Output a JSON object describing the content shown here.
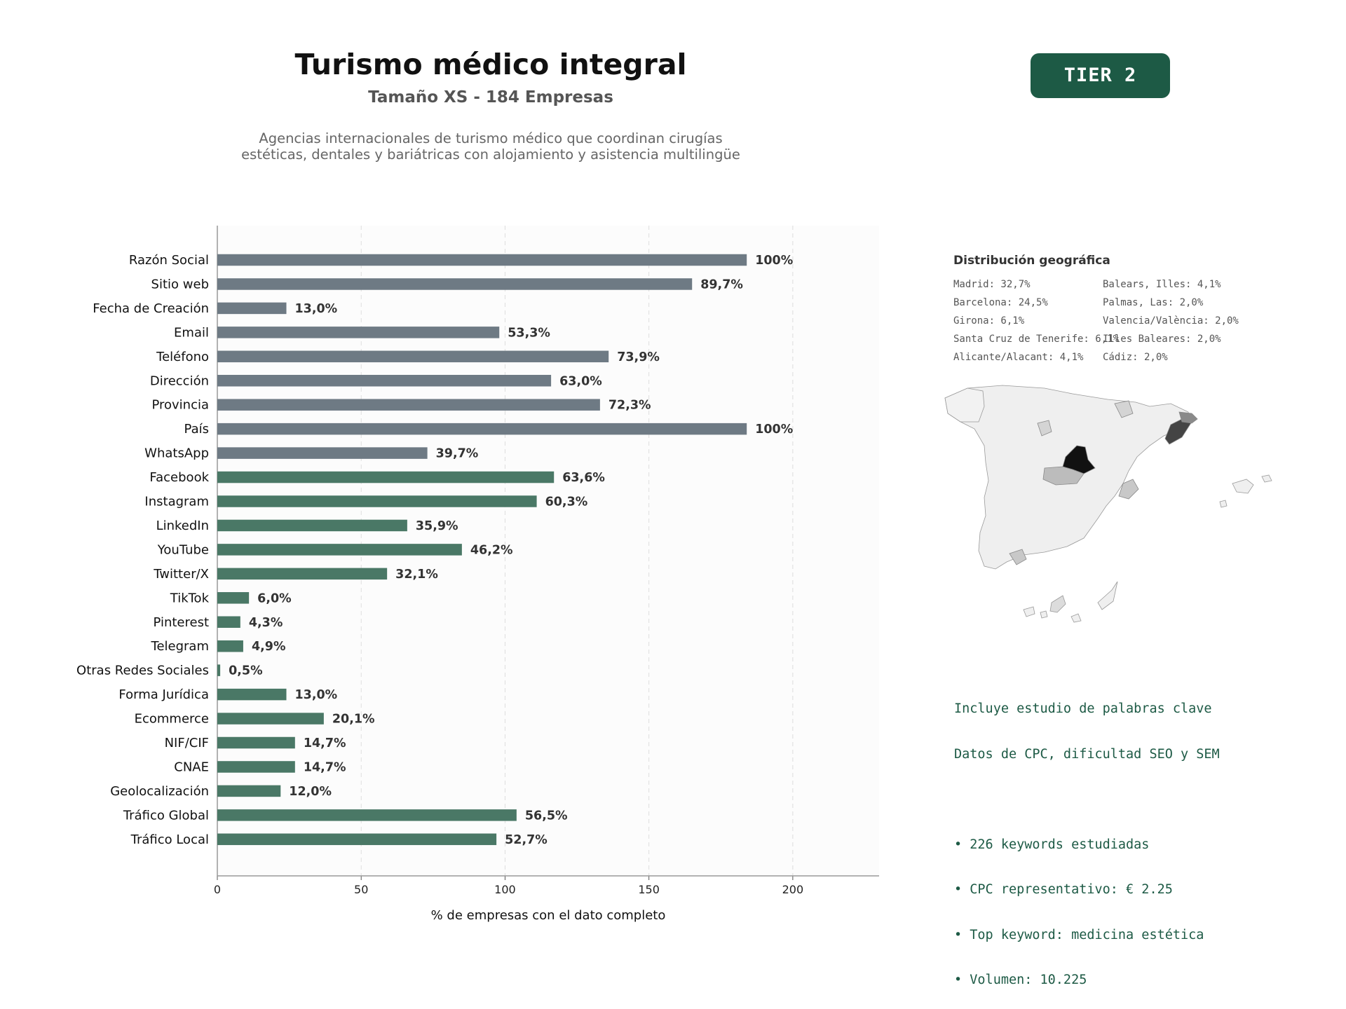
{
  "header": {
    "title": "Turismo médico integral",
    "subtitle": "Tamaño XS - 184 Empresas",
    "description": "Agencias internacionales de turismo médico que coordinan cirugías estéticas, dentales y bariátricas con alojamiento y asistencia multilingüe",
    "tier_badge": "TIER 2"
  },
  "colors": {
    "basic_bar": "#6e7a84",
    "extended_bar": "#4a7866",
    "accent": "#1d5a45"
  },
  "chart_data": {
    "type": "bar",
    "orientation": "horizontal",
    "xlabel": "% de empresas con el dato completo",
    "xlim": [
      0,
      230
    ],
    "xticks": [
      0,
      50,
      100,
      150,
      200
    ],
    "grid": "vertical dashed",
    "categories": [
      "Razón Social",
      "Sitio web",
      "Fecha de Creación",
      "Email",
      "Teléfono",
      "Dirección",
      "Provincia",
      "País",
      "WhatsApp",
      "Facebook",
      "Instagram",
      "LinkedIn",
      "YouTube",
      "Twitter/X",
      "TikTok",
      "Pinterest",
      "Telegram",
      "Otras Redes Sociales",
      "Forma Jurídica",
      "Ecommerce",
      "NIF/CIF",
      "CNAE",
      "Geolocalización",
      "Tráfico Global",
      "Tráfico Local"
    ],
    "values": [
      184,
      165,
      24,
      98,
      136,
      116,
      133,
      184,
      73,
      117,
      111,
      66,
      85,
      59,
      11,
      8,
      9,
      1,
      24,
      37,
      27,
      27,
      22,
      104,
      97
    ],
    "labels": [
      "100%",
      "89,7%",
      "13,0%",
      "53,3%",
      "73,9%",
      "63,0%",
      "72,3%",
      "100%",
      "39,7%",
      "63,6%",
      "60,3%",
      "35,9%",
      "46,2%",
      "32,1%",
      "6,0%",
      "4,3%",
      "4,9%",
      "0,5%",
      "13,0%",
      "20,1%",
      "14,7%",
      "14,7%",
      "12,0%",
      "56,5%",
      "52,7%"
    ],
    "color_group": [
      "basic",
      "basic",
      "basic",
      "basic",
      "basic",
      "basic",
      "basic",
      "basic",
      "basic",
      "extended",
      "extended",
      "extended",
      "extended",
      "extended",
      "extended",
      "extended",
      "extended",
      "extended",
      "extended",
      "extended",
      "extended",
      "extended",
      "extended",
      "extended",
      "extended"
    ]
  },
  "geo": {
    "title": "Distribución geográfica",
    "items": [
      "Madrid: 32,7%",
      "Barcelona: 24,5%",
      "Girona: 6,1%",
      "Santa Cruz de Tenerife: 6,1%",
      "Alicante/Alacant: 4,1%",
      "Balears, Illes: 4,1%",
      "Palmas, Las: 2,0%",
      "Valencia/València: 2,0%",
      "Illes Baleares: 2,0%",
      "Cádiz: 2,0%"
    ]
  },
  "keywords": {
    "lines": [
      "Incluye estudio de palabras clave",
      "Datos de CPC, dificultad SEO y SEM",
      "",
      "• 226 keywords estudiadas",
      "• CPC representativo: € 2.25",
      "• Top keyword: medicina estética",
      "• Volumen: 10.225"
    ]
  }
}
